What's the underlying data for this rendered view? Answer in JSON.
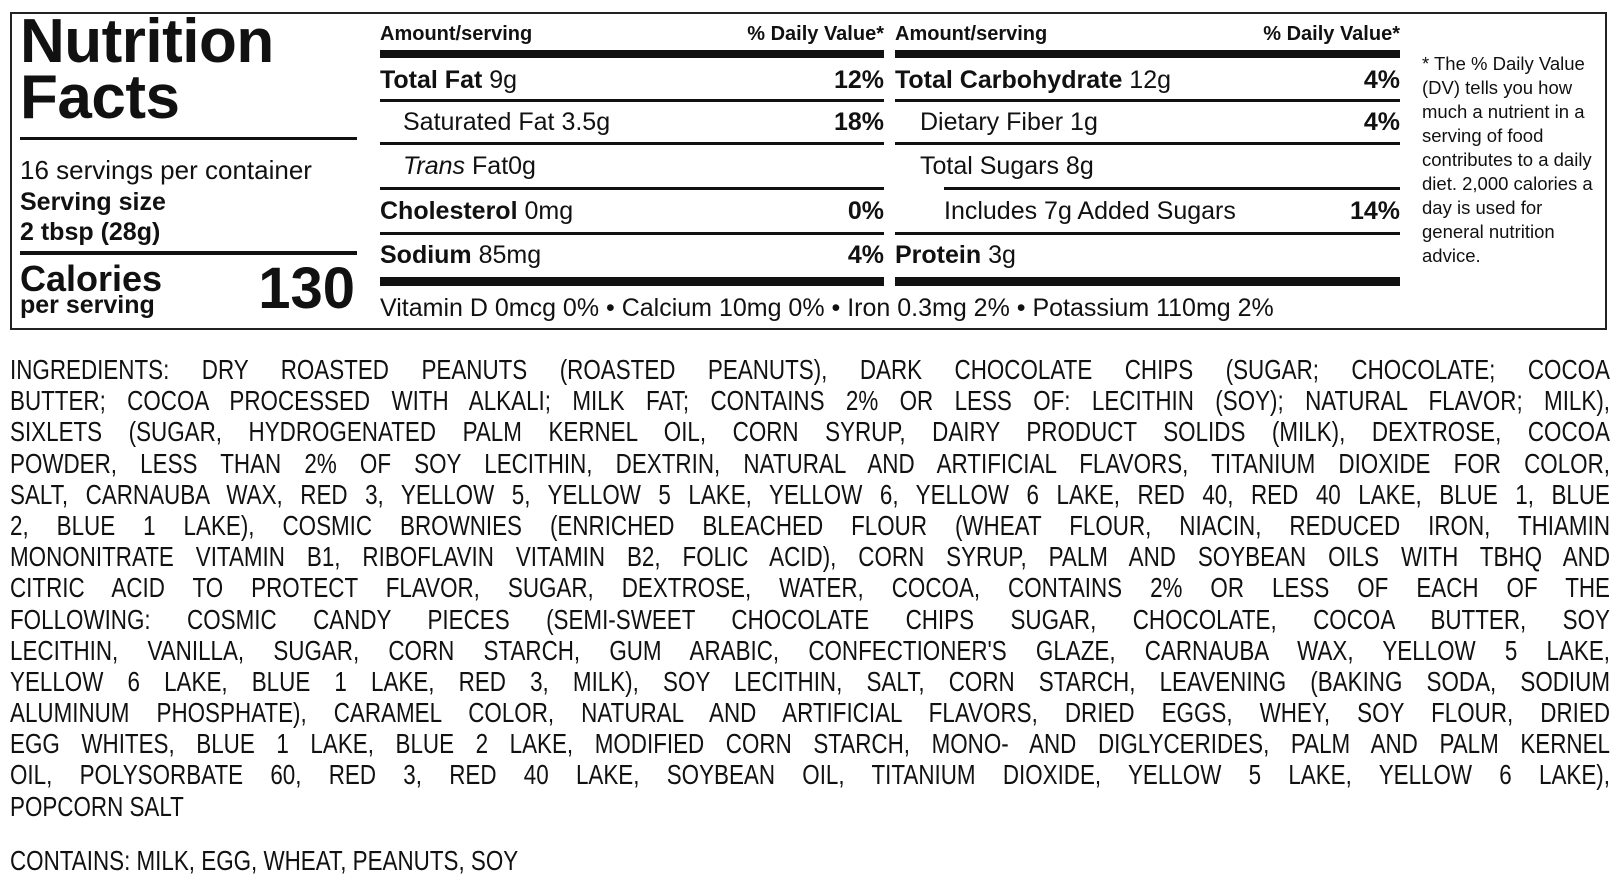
{
  "label": {
    "title_line1": "Nutrition",
    "title_line2": "Facts",
    "servings": "16 servings per container",
    "serving_size_label": "Serving size",
    "serving_size_value": "2 tbsp (28g)",
    "calories_label": "Calories",
    "calories_sub": "per serving",
    "calories_value": "130",
    "header_amount": "Amount/serving",
    "header_dv": "% Daily Value*",
    "left_rows": [
      {
        "name": "Total Fat",
        "amount": "9g",
        "dv": "12%"
      },
      {
        "name": "Saturated Fat",
        "amount": "3.5g",
        "dv": "18%"
      },
      {
        "name": "Trans",
        "name_rest": "Fat",
        "amount": "0g",
        "dv": ""
      },
      {
        "name": "Cholesterol",
        "amount": "0mg",
        "dv": "0%"
      },
      {
        "name": "Sodium",
        "amount": "85mg",
        "dv": "4%"
      }
    ],
    "right_rows": [
      {
        "name": "Total Carbohydrate",
        "amount": "12g",
        "dv": "4%"
      },
      {
        "name": "Dietary Fiber",
        "amount": "1g",
        "dv": "4%"
      },
      {
        "name": "Total Sugars",
        "amount": "8g",
        "dv": ""
      },
      {
        "name": "Includes 7g Added Sugars",
        "amount": "",
        "dv": "14%"
      },
      {
        "name": "Protein",
        "amount": "3g",
        "dv": ""
      }
    ],
    "vitamins": "Vitamin D 0mcg 0% • Calcium 10mg 0% • Iron 0.3mg 2% • Potassium 110mg 2%",
    "footnote": "* The % Daily Value (DV) tells you how much a nutrient in a serving of food contributes to a daily diet. 2,000 calories a day is used for general nutrition advice."
  },
  "ingredients_lines": [
    "INGREDIENTS: DRY ROASTED PEANUTS (ROASTED PEANUTS), DARK CHOCOLATE CHIPS (SUGAR; CHOCOLATE; COCOA",
    "BUTTER; COCOA PROCESSED WITH ALKALI; MILK FAT; CONTAINS 2% OR LESS OF: LECITHIN (SOY); NATURAL FLAVOR; MILK),",
    "SIXLETS (SUGAR, HYDROGENATED PALM KERNEL OIL, CORN SYRUP, DAIRY PRODUCT SOLIDS (MILK), DEXTROSE, COCOA",
    "POWDER, LESS THAN 2% OF SOY LECITHIN, DEXTRIN, NATURAL AND ARTIFICIAL FLAVORS, TITANIUM DIOXIDE FOR COLOR,",
    "SALT, CARNAUBA WAX, RED 3, YELLOW 5, YELLOW 5 LAKE, YELLOW 6, YELLOW 6 LAKE, RED 40, RED 40 LAKE, BLUE 1, BLUE",
    "2, BLUE 1 LAKE), COSMIC BROWNIES (ENRICHED BLEACHED FLOUR (WHEAT FLOUR, NIACIN, REDUCED IRON, THIAMIN",
    "MONONITRATE VITAMIN B1, RIBOFLAVIN VITAMIN B2, FOLIC ACID), CORN SYRUP, PALM AND SOYBEAN OILS WITH TBHQ AND",
    "CITRIC ACID TO PROTECT FLAVOR, SUGAR, DEXTROSE, WATER, COCOA, CONTAINS 2% OR LESS OF EACH OF THE",
    "FOLLOWING: COSMIC CANDY PIECES (SEMI-SWEET CHOCOLATE CHIPS SUGAR, CHOCOLATE, COCOA BUTTER, SOY",
    "LECITHIN, VANILLA, SUGAR, CORN STARCH, GUM ARABIC, CONFECTIONER'S GLAZE, CARNAUBA WAX, YELLOW 5 LAKE,",
    "YELLOW 6 LAKE, BLUE 1 LAKE, RED 3, MILK), SOY LECITHIN, SALT, CORN STARCH, LEAVENING (BAKING SODA, SODIUM",
    "ALUMINUM PHOSPHATE), CARAMEL COLOR, NATURAL AND ARTIFICIAL FLAVORS, DRIED EGGS, WHEY, SOY FLOUR, DRIED",
    "EGG WHITES, BLUE 1 LAKE, BLUE 2 LAKE, MODIFIED CORN STARCH, MONO- AND DIGLYCERIDES, PALM AND PALM KERNEL",
    "OIL, POLYSORBATE 60, RED 3, RED 40 LAKE, SOYBEAN OIL, TITANIUM DIOXIDE, YELLOW 5 LAKE, YELLOW 6 LAKE),",
    "POPCORN SALT"
  ],
  "contains": "CONTAINS: MILK, EGG, WHEAT, PEANUTS, SOY"
}
